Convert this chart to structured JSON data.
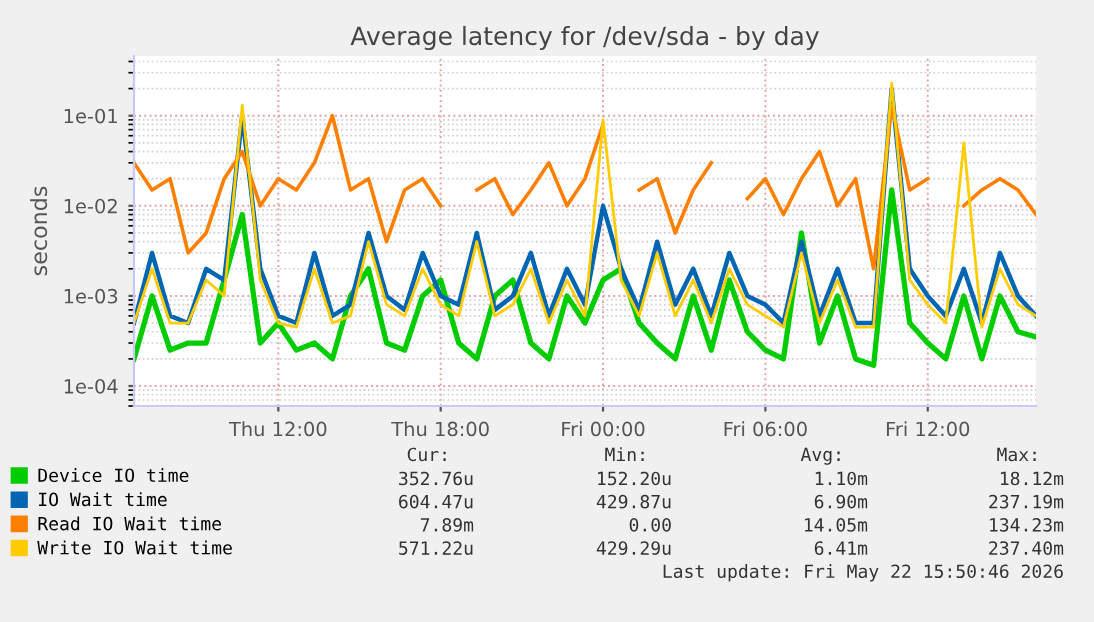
{
  "chart_data": {
    "type": "line",
    "title": "Average latency for /dev/sda - by day",
    "ylabel": "seconds",
    "log": "y",
    "grid": true,
    "legend": "bottom",
    "marker": "none",
    "line_style": "solid",
    "xlim": [
      "2026-05-21T06:40",
      "2026-05-22T16:00"
    ],
    "xticks": [
      {
        "value": "2026-05-21T12:00",
        "label": "Thu 12:00"
      },
      {
        "value": "2026-05-21T18:00",
        "label": "Thu 18:00"
      },
      {
        "value": "2026-05-22T00:00",
        "label": "Fri 00:00"
      },
      {
        "value": "2026-05-22T06:00",
        "label": "Fri 06:00"
      },
      {
        "value": "2026-05-22T12:00",
        "label": "Fri 12:00"
      }
    ],
    "ylim": [
      6e-05,
      0.46
    ],
    "yticks": [
      {
        "value": 0.0001,
        "label": "1e-04"
      },
      {
        "value": 0.001,
        "label": "1e-03"
      },
      {
        "value": 0.01,
        "label": "1e-02"
      },
      {
        "value": 0.1,
        "label": "1e-01"
      }
    ],
    "x": [
      "2026-05-21T06:40",
      "2026-05-21T07:20",
      "2026-05-21T08:00",
      "2026-05-21T08:40",
      "2026-05-21T09:20",
      "2026-05-21T10:00",
      "2026-05-21T10:40",
      "2026-05-21T11:20",
      "2026-05-21T12:00",
      "2026-05-21T12:40",
      "2026-05-21T13:20",
      "2026-05-21T14:00",
      "2026-05-21T14:40",
      "2026-05-21T15:20",
      "2026-05-21T16:00",
      "2026-05-21T16:40",
      "2026-05-21T17:20",
      "2026-05-21T18:00",
      "2026-05-21T18:40",
      "2026-05-21T19:20",
      "2026-05-21T20:00",
      "2026-05-21T20:40",
      "2026-05-21T21:20",
      "2026-05-21T22:00",
      "2026-05-21T22:40",
      "2026-05-21T23:20",
      "2026-05-22T00:00",
      "2026-05-22T00:40",
      "2026-05-22T01:20",
      "2026-05-22T02:00",
      "2026-05-22T02:40",
      "2026-05-22T03:20",
      "2026-05-22T04:00",
      "2026-05-22T04:40",
      "2026-05-22T05:20",
      "2026-05-22T06:00",
      "2026-05-22T06:40",
      "2026-05-22T07:20",
      "2026-05-22T08:00",
      "2026-05-22T08:40",
      "2026-05-22T09:20",
      "2026-05-22T10:00",
      "2026-05-22T10:40",
      "2026-05-22T11:20",
      "2026-05-22T12:00",
      "2026-05-22T12:40",
      "2026-05-22T13:20",
      "2026-05-22T14:00",
      "2026-05-22T14:40",
      "2026-05-22T15:20",
      "2026-05-22T16:00"
    ],
    "series": [
      {
        "name": "Device IO time",
        "color": "#00cc00",
        "values": [
          0.0002,
          0.001,
          0.00025,
          0.0003,
          0.0003,
          0.0015,
          0.008,
          0.0003,
          0.0005,
          0.00025,
          0.0003,
          0.0002,
          0.001,
          0.002,
          0.0003,
          0.00025,
          0.001,
          0.0015,
          0.0003,
          0.0002,
          0.001,
          0.0015,
          0.0003,
          0.0002,
          0.001,
          0.0005,
          0.0015,
          0.002,
          0.0005,
          0.0003,
          0.0002,
          0.001,
          0.00025,
          0.0015,
          0.0004,
          0.00025,
          0.0002,
          0.005,
          0.0003,
          0.001,
          0.0002,
          0.00017,
          0.015,
          0.0005,
          0.0003,
          0.0002,
          0.001,
          0.0002,
          0.001,
          0.0004,
          0.00035
        ]
      },
      {
        "name": "IO Wait time",
        "color": "#0066b3",
        "values": [
          0.0005,
          0.003,
          0.0006,
          0.0005,
          0.002,
          0.0015,
          0.1,
          0.002,
          0.0006,
          0.0005,
          0.003,
          0.0006,
          0.0008,
          0.005,
          0.001,
          0.0007,
          0.003,
          0.001,
          0.0008,
          0.005,
          0.0007,
          0.001,
          0.003,
          0.0006,
          0.002,
          0.0008,
          0.01,
          0.002,
          0.0007,
          0.004,
          0.0008,
          0.002,
          0.0006,
          0.003,
          0.001,
          0.0008,
          0.0005,
          0.004,
          0.0006,
          0.002,
          0.0005,
          0.0005,
          0.2,
          0.002,
          0.001,
          0.0006,
          0.002,
          0.0005,
          0.003,
          0.001,
          0.0006
        ]
      },
      {
        "name": "Read IO Wait time",
        "color": "#ff8000",
        "values": [
          0.03,
          0.015,
          0.02,
          0.003,
          0.005,
          0.02,
          0.04,
          0.01,
          0.02,
          0.015,
          0.03,
          0.1,
          0.015,
          0.02,
          0.004,
          0.015,
          0.02,
          0.01,
          null,
          0.015,
          0.02,
          0.008,
          0.015,
          0.03,
          0.01,
          0.02,
          0.08,
          null,
          0.015,
          0.02,
          0.005,
          0.015,
          0.03,
          null,
          0.012,
          0.02,
          0.008,
          0.02,
          0.04,
          0.01,
          0.02,
          0.002,
          0.13,
          0.015,
          0.02,
          null,
          0.01,
          0.015,
          0.02,
          0.015,
          0.008
        ]
      },
      {
        "name": "Write IO Wait time",
        "color": "#ffcc00",
        "values": [
          0.0005,
          0.002,
          0.0005,
          0.0005,
          0.0015,
          0.001,
          0.13,
          0.0015,
          0.0005,
          0.00045,
          0.002,
          0.0005,
          0.0006,
          0.004,
          0.0008,
          0.0006,
          0.002,
          0.0008,
          0.0006,
          0.004,
          0.0006,
          0.0008,
          0.002,
          0.0005,
          0.0015,
          0.0006,
          0.09,
          0.0015,
          0.0006,
          0.003,
          0.0006,
          0.0015,
          0.0005,
          0.002,
          0.0008,
          0.0006,
          0.00045,
          0.003,
          0.0005,
          0.0015,
          0.00045,
          0.00045,
          0.23,
          0.0015,
          0.0008,
          0.0005,
          0.05,
          0.00045,
          0.002,
          0.0008,
          0.0006
        ]
      }
    ],
    "annotations": [
      "Cur:",
      "Min:",
      "Avg:",
      "Max:",
      "352.76u",
      "152.20u",
      "1.10m",
      "18.12m",
      "604.47u",
      "429.87u",
      "6.90m",
      "237.19m",
      "7.89m",
      "0.00",
      "14.05m",
      "134.23m",
      "571.22u",
      "429.29u",
      "6.41m",
      "237.40m",
      "Last update: Fri May 22 15:50:46 2026"
    ]
  }
}
